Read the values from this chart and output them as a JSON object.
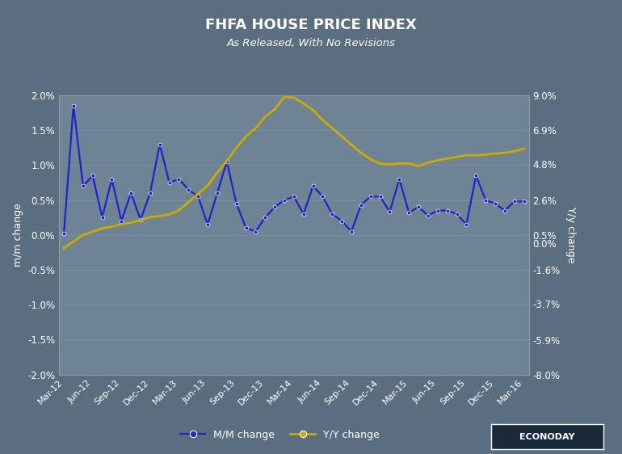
{
  "title": "FHFA HOUSE PRICE INDEX",
  "subtitle": "As Released, With No Revisions",
  "ylabel_left": "m/m change",
  "ylabel_right": "Y/y change",
  "x_labels": [
    "Mar-12",
    "Jun-12",
    "Sep-12",
    "Dec-12",
    "Mar-13",
    "Jun-13",
    "Sep-13",
    "Dec-13",
    "Mar-14",
    "Jun-14",
    "Sep-14",
    "Dec-14",
    "Mar-15",
    "Jun-15",
    "Sep-15",
    "Dec-15",
    "Mar-16"
  ],
  "mm_data": [
    0.02,
    1.85,
    0.7,
    0.85,
    0.25,
    0.8,
    0.2,
    0.6,
    0.22,
    0.6,
    1.3,
    0.75,
    0.8,
    0.65,
    0.55,
    0.15,
    0.6,
    1.05,
    0.45,
    0.1,
    0.05,
    0.25,
    0.4,
    0.5,
    0.55,
    0.3,
    0.7,
    0.55,
    0.3,
    0.2,
    0.05,
    0.43,
    0.55,
    0.55,
    0.33,
    0.8,
    0.32,
    0.4,
    0.28,
    0.35,
    0.35,
    0.3,
    0.15,
    0.85,
    0.5,
    0.45,
    0.35,
    0.48,
    0.48
  ],
  "yy_data": [
    -0.3,
    0.1,
    0.5,
    0.7,
    0.9,
    1.0,
    1.15,
    1.25,
    1.4,
    1.6,
    1.65,
    1.75,
    2.0,
    2.5,
    3.0,
    3.5,
    4.3,
    5.0,
    5.8,
    6.5,
    7.0,
    7.7,
    8.15,
    8.9,
    8.85,
    8.5,
    8.1,
    7.5,
    7.0,
    6.5,
    6.0,
    5.5,
    5.1,
    4.85,
    4.8,
    4.85,
    4.85,
    4.7,
    4.9,
    5.05,
    5.15,
    5.25,
    5.35,
    5.35,
    5.4,
    5.45,
    5.5,
    5.6,
    5.75
  ],
  "mm_color": "#2222cc",
  "yy_color": "#ccaa00",
  "left_ylim": [
    -2.0,
    2.0
  ],
  "right_ylim": [
    -8.0,
    9.0
  ],
  "left_yticks": [
    -2.0,
    -1.5,
    -1.0,
    -0.5,
    0.0,
    0.5,
    1.0,
    1.5,
    2.0
  ],
  "right_yticks": [
    -8.0,
    -5.9,
    -3.7,
    -1.6,
    0.0,
    0.5,
    2.6,
    4.8,
    6.9,
    9.0
  ],
  "bg_color": "#5a6e80",
  "plot_bg_top": "#6e8494",
  "plot_bg_bottom": "#8096a8",
  "text_color": "#ffffff",
  "grid_color": "#7a8f9f",
  "econoday_text": "ECONODAY"
}
